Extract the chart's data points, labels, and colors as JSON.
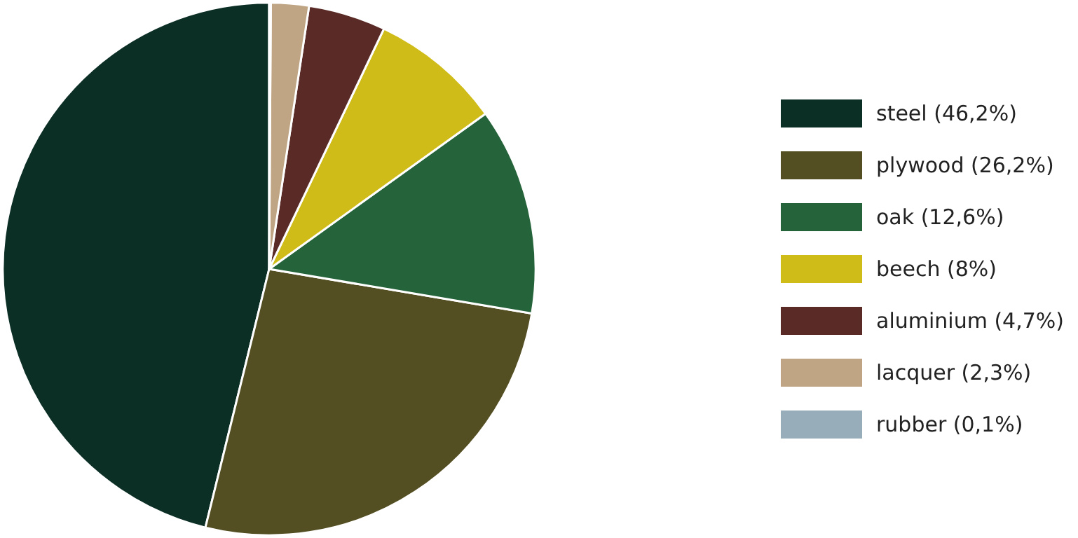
{
  "chart_data": {
    "type": "pie",
    "categories": [
      "steel (46,2%)",
      "plywood (26,2%)",
      "oak (12,6%)",
      "beech (8%)",
      "aluminium (4,7%)",
      "lacquer (2,3%)",
      "rubber (0,1%)"
    ],
    "values": [
      46.2,
      26.2,
      12.6,
      8,
      4.7,
      2.3,
      0.1
    ],
    "colors": [
      "#0b2e25",
      "#544f23",
      "#25643a",
      "#d0bc19",
      "#5a2b26",
      "#bfa584",
      "#97adb9"
    ],
    "legend": "right"
  }
}
